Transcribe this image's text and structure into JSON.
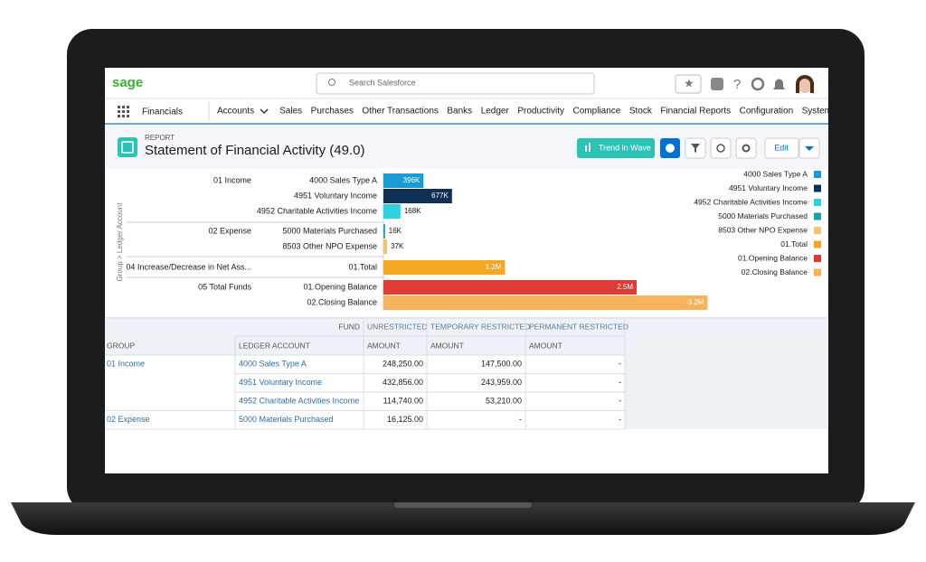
{
  "app": {
    "logo": "sage",
    "search": "Search Salesforce",
    "name": "Financials",
    "nav": [
      "Accounts",
      "Sales",
      "Purchases",
      "Other Transactions",
      "Banks",
      "Ledger",
      "Productivity",
      "Compliance",
      "Stock",
      "Financial Reports",
      "Configuration",
      "System"
    ]
  },
  "report": {
    "label": "REPORT",
    "title": "Statement of Financial Activity (49.0)",
    "buttons": [
      "Trend in Wave",
      "Edit"
    ]
  },
  "chart_data": {
    "type": "bar",
    "orientation": "horizontal",
    "y_label": "Group > Ledger Account",
    "groups": [
      "01 Income",
      null,
      null,
      "02 Expense",
      null,
      "04 Increase/Decrease in Net Ass...",
      "05 Total Funds",
      null
    ],
    "categories": [
      "4000 Sales Type A",
      "4951 Voluntary Income",
      "4952 Charitable Activities Income",
      "5000 Materials Purchased",
      "8503 Other NPO Expense",
      "01.Total",
      "01.Opening Balance",
      "02.Closing Balance"
    ],
    "values": [
      396000,
      677000,
      168000,
      16000,
      37000,
      1200000,
      2500000,
      3200000
    ],
    "value_labels": [
      "396K",
      "677K",
      "168K",
      "16K",
      "37K",
      "1.2M",
      "2.5M",
      "3.2M"
    ],
    "colors": [
      "#1b9ad6",
      "#0f2f57",
      "#2fd2dc",
      "#1aa3a3",
      "#f2c27a",
      "#f5a623",
      "#e03b37",
      "#f7b35b"
    ],
    "xlim": [
      0,
      3500000
    ],
    "legend": "right"
  },
  "table": {
    "fund_header": "FUND",
    "fund_columns": [
      "UNRESTRICTED",
      "TEMPORARY RESTRICTED",
      "PERMANENT RESTRICTED"
    ],
    "header": [
      "GROUP",
      "LEDGER ACCOUNT",
      "AMOUNT",
      "AMOUNT",
      "AMOUNT"
    ],
    "rows": [
      [
        "01 Income",
        "4000 Sales Type A",
        "248,250.00",
        "147,500.00",
        "-"
      ],
      [
        null,
        "4951 Voluntary Income",
        "432,856.00",
        "243,959.00",
        "-"
      ],
      [
        null,
        "4952 Charitable Activities Income",
        "114,740.00",
        "53,210.00",
        "-"
      ],
      [
        "02 Expense",
        "5000 Materials Purchased",
        "16,125.00",
        "-",
        "-"
      ]
    ]
  }
}
